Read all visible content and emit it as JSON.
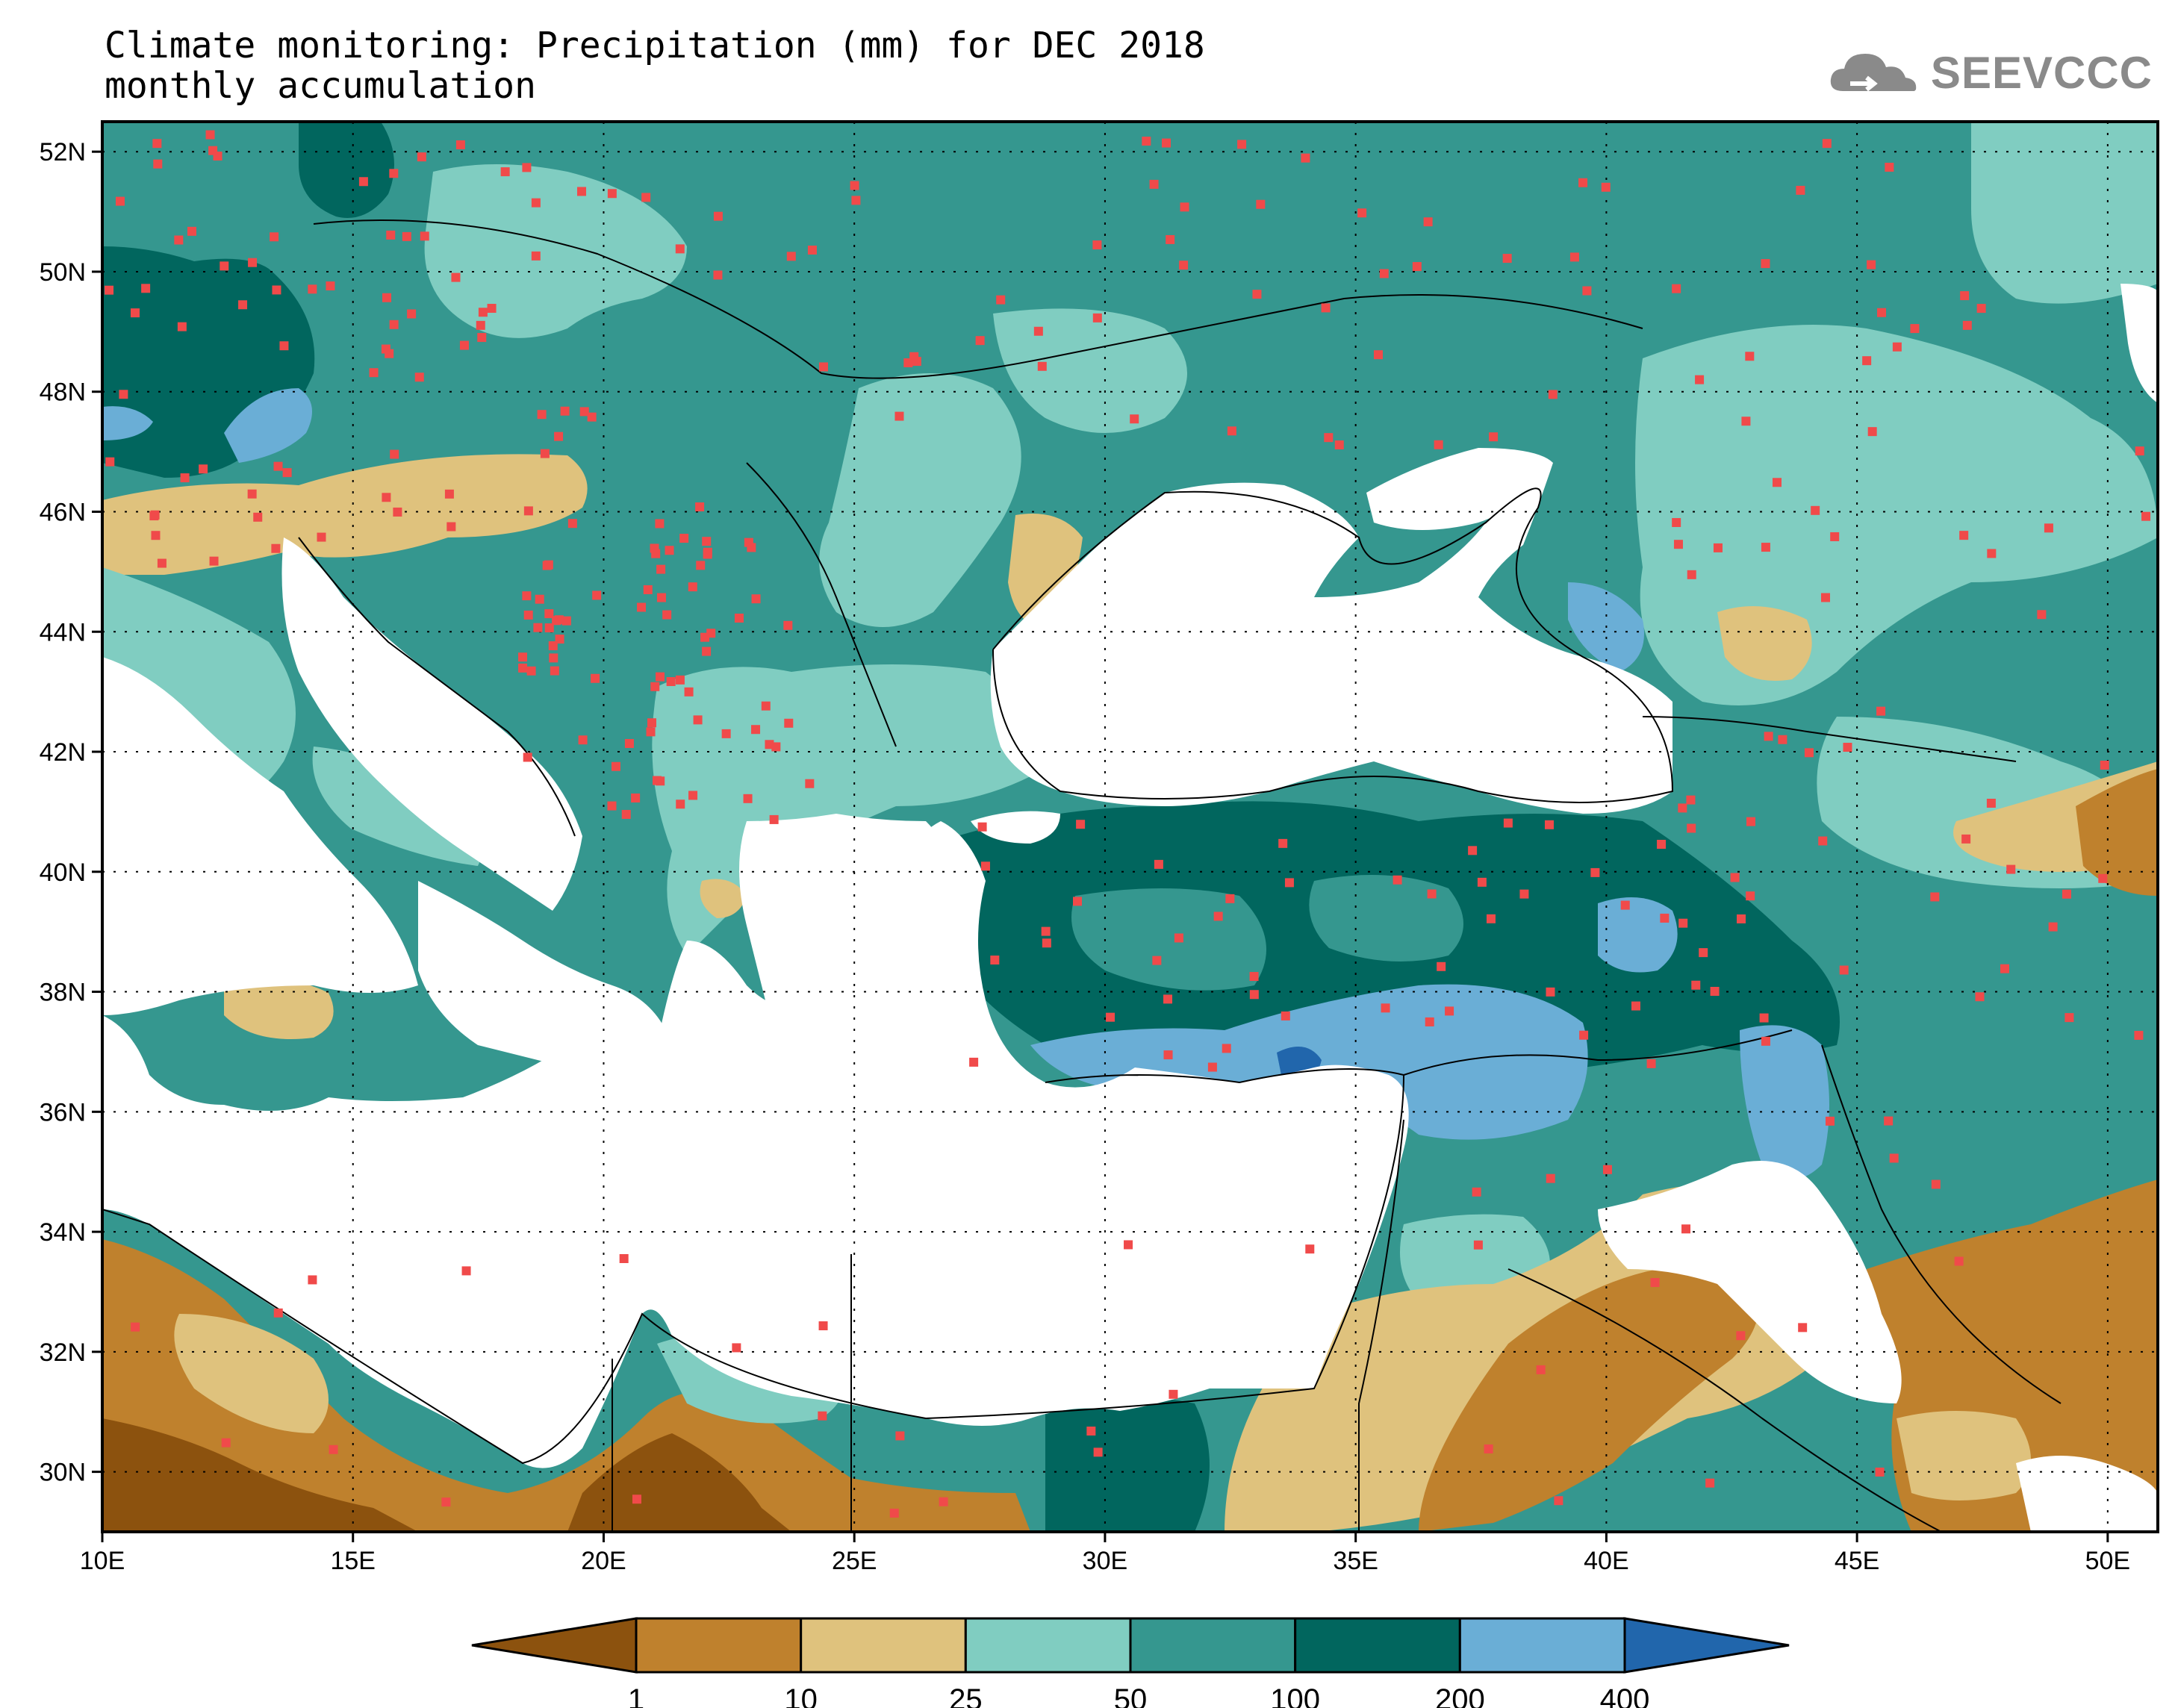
{
  "title": {
    "line1": "Climate monitoring: Precipitation (mm) for DEC 2018",
    "line2": "monthly accumulation"
  },
  "logo": {
    "text": "SEEVCCC",
    "icon": "cloud-icon"
  },
  "axes": {
    "lon_labels": [
      "10E",
      "15E",
      "20E",
      "25E",
      "30E",
      "35E",
      "40E",
      "45E",
      "50E"
    ],
    "lat_labels": [
      "52N",
      "50N",
      "48N",
      "46N",
      "44N",
      "42N",
      "40N",
      "38N",
      "36N",
      "34N",
      "32N",
      "30N"
    ],
    "lon_range": [
      10,
      51
    ],
    "lat_range": [
      29,
      52.5
    ],
    "grid": "dotted"
  },
  "legend": {
    "bins": [
      {
        "label": "1",
        "color": "#8c520e"
      },
      {
        "label": "10",
        "color": "#bf812d"
      },
      {
        "label": "25",
        "color": "#dfc27d"
      },
      {
        "label": "50",
        "color": "#80cdc1"
      },
      {
        "label": "100",
        "color": "#35978f"
      },
      {
        "label": "200",
        "color": "#01665e"
      },
      {
        "label": "400",
        "color": "#6aaed6"
      }
    ],
    "over_color": "#2166ac",
    "sea_color": "#ffffff",
    "station_color": "#f04a4a"
  }
}
